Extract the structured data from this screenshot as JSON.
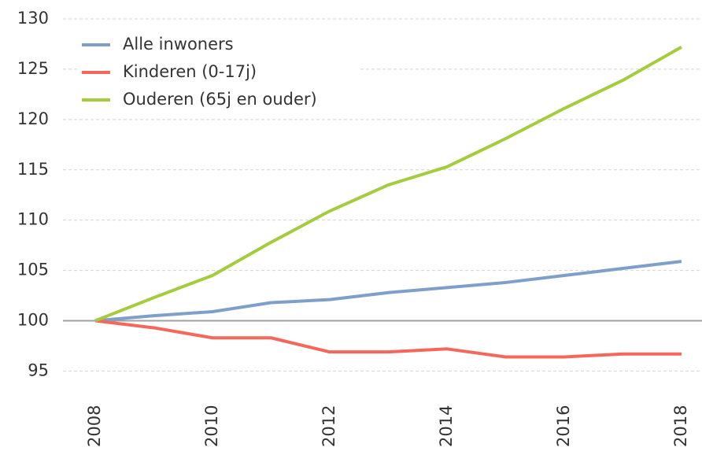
{
  "chart_data": {
    "type": "line",
    "x": [
      2008,
      2009,
      2010,
      2011,
      2012,
      2013,
      2014,
      2015,
      2016,
      2017,
      2018
    ],
    "series": [
      {
        "name": "Alle inwoners",
        "color": "#7f9fcb",
        "values": [
          100,
          100.5,
          100.9,
          101.8,
          102.1,
          102.8,
          103.3,
          103.8,
          104.5,
          105.2,
          105.9
        ]
      },
      {
        "name": "Kinderen (0-17j)",
        "color": "#f4685c",
        "values": [
          100,
          99.3,
          98.3,
          98.3,
          96.9,
          96.9,
          97.2,
          96.4,
          96.4,
          96.7,
          96.7
        ]
      },
      {
        "name": "Ouderen (65j en ouder)",
        "color": "#a4cc3c",
        "values": [
          100,
          102.3,
          104.5,
          107.8,
          110.9,
          113.5,
          115.3,
          118.1,
          121.1,
          123.9,
          127.2
        ]
      }
    ],
    "xlim": [
      2007.45,
      2018.35
    ],
    "xticks": [
      2008,
      2010,
      2012,
      2014,
      2016,
      2018
    ],
    "ylim": [
      93,
      130
    ],
    "yticks": [
      95,
      100,
      105,
      110,
      115,
      120,
      125,
      130
    ],
    "reference_line": 100,
    "grid": true,
    "legend": "top-left"
  }
}
